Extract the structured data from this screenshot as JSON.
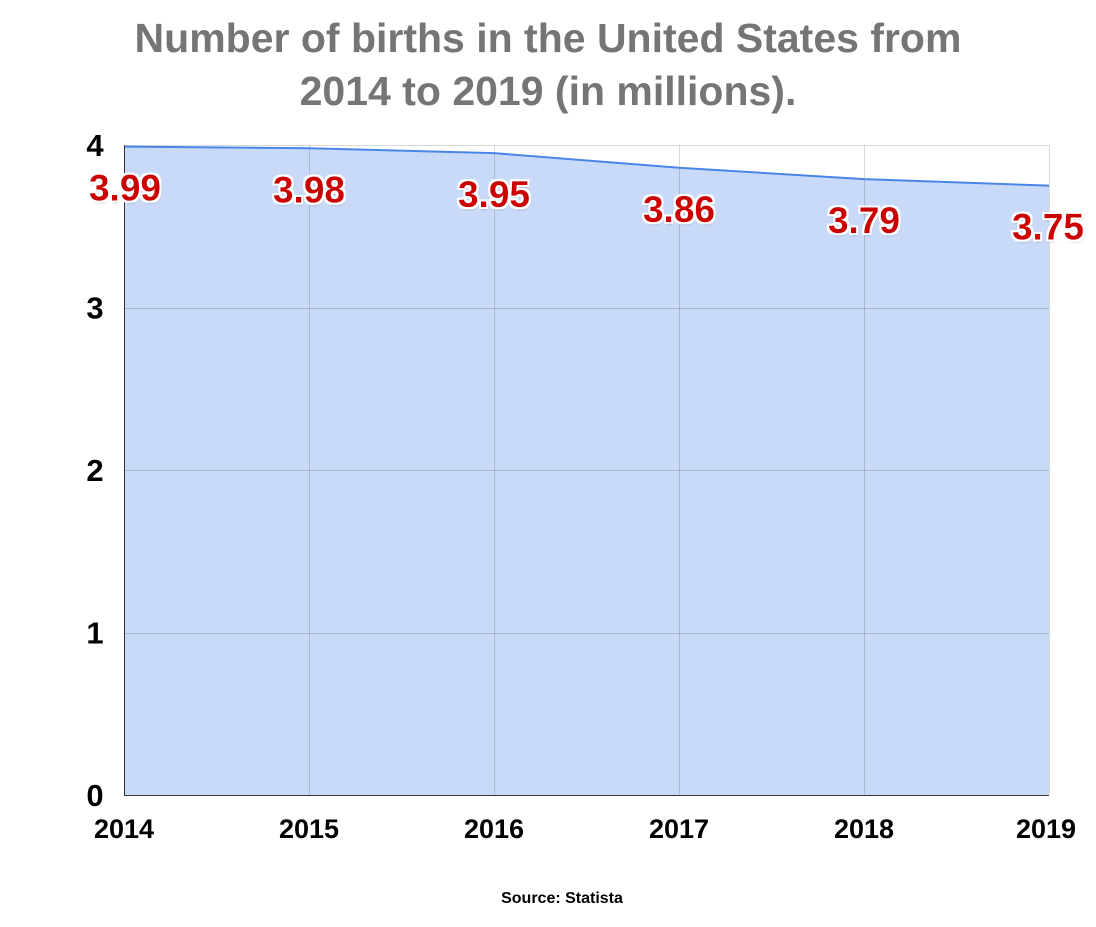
{
  "chart_data": {
    "type": "area",
    "title_lines": [
      "Number of births in the United States from",
      "2014 to 2019 (in millions)."
    ],
    "categories": [
      "2014",
      "2015",
      "2016",
      "2017",
      "2018",
      "2019"
    ],
    "series": [
      {
        "values": [
          3.99,
          3.98,
          3.95,
          3.86,
          3.79,
          3.75
        ],
        "data_labels": [
          "3.99",
          "3.98",
          "3.95",
          "3.86",
          "3.79",
          "3.75"
        ],
        "line_color": "#4a86e8",
        "fill_color": "#c9daf8"
      }
    ],
    "y_ticks": [
      "0",
      "1",
      "2",
      "3",
      "4"
    ],
    "ylim": [
      0,
      4
    ],
    "xlabel": "",
    "ylabel": "",
    "grid": true,
    "legend": "none",
    "data_label_color": "#cc0000",
    "title_color": "#757575"
  },
  "source": "Source: Statista"
}
